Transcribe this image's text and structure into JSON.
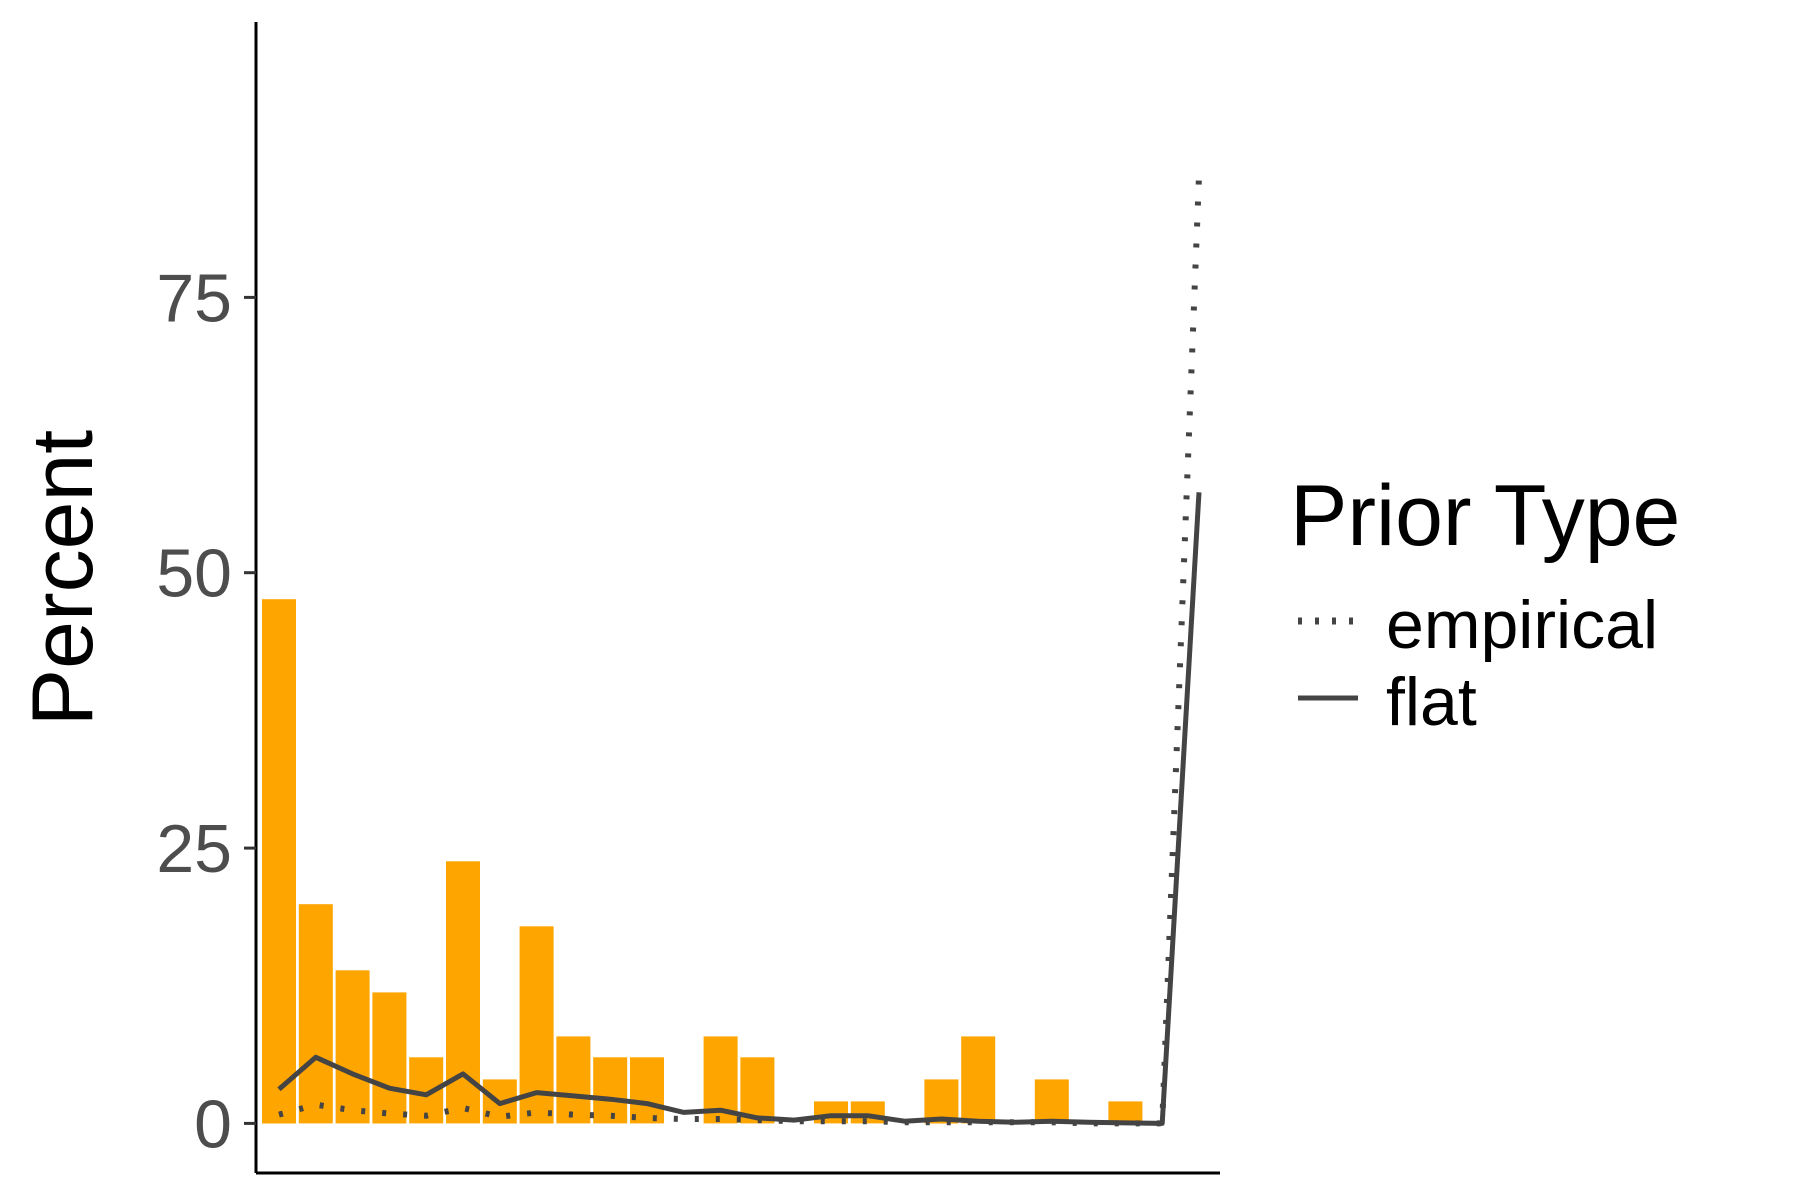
{
  "chart_data": {
    "type": "bar",
    "ylabel": "Percent",
    "xlabel": "",
    "ylim": [
      -4.5,
      100
    ],
    "yticks": [
      0,
      25,
      50,
      75
    ],
    "bar_color": "#FFA500",
    "line_color": "#444444",
    "bar_values": [
      47.6,
      19.9,
      13.9,
      11.9,
      6.0,
      23.8,
      4.0,
      17.9,
      7.9,
      6.0,
      6.0,
      0,
      7.9,
      6.0,
      0,
      2.0,
      2.0,
      0,
      4.0,
      7.9,
      0,
      4.0,
      0,
      2.0,
      0
    ],
    "series": [
      {
        "name": "empirical",
        "linetype": "dotted",
        "values": [
          0.8,
          1.7,
          1.2,
          0.9,
          0.7,
          1.4,
          0.6,
          1.0,
          0.8,
          0.7,
          0.5,
          0.4,
          0.4,
          0.3,
          0.2,
          0.2,
          0.2,
          0.1,
          0.1,
          0.1,
          0.1,
          0.1,
          0.0,
          0.0,
          0.0,
          86.0
        ]
      },
      {
        "name": "flat",
        "linetype": "solid",
        "values": [
          3.1,
          6.0,
          4.5,
          3.2,
          2.6,
          4.5,
          1.8,
          2.8,
          2.5,
          2.2,
          1.8,
          1.0,
          1.2,
          0.5,
          0.3,
          0.7,
          0.7,
          0.2,
          0.4,
          0.2,
          0.1,
          0.2,
          0.1,
          0.05,
          0.0,
          57.3
        ]
      }
    ],
    "legend": {
      "title": "Prior Type",
      "position": "right",
      "entries": [
        "empirical",
        "flat"
      ]
    }
  }
}
